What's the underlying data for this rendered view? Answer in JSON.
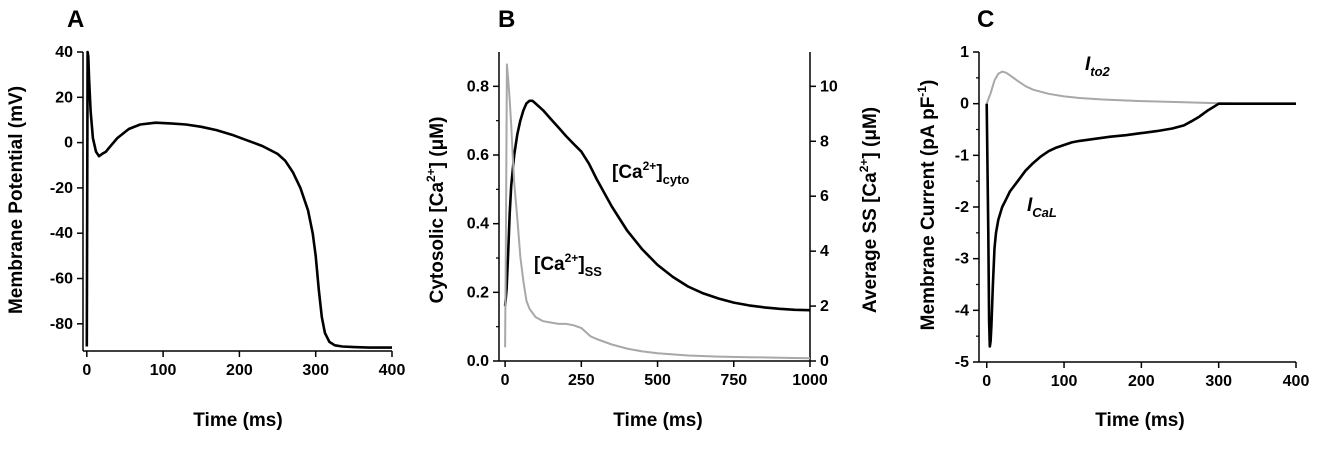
{
  "chart_data": [
    {
      "panel": "A",
      "type": "line",
      "xlabel": "Time (ms)",
      "ylabel": "Membrane Potential (mV)",
      "xlim": [
        -5,
        400
      ],
      "ylim": [
        -92,
        40
      ],
      "xticks": [
        0,
        100,
        200,
        300,
        400
      ],
      "yticks": [
        40,
        20,
        0,
        -20,
        -40,
        -60,
        -80
      ],
      "series": [
        {
          "color": "#000000",
          "x": [
            0,
            1,
            2,
            3,
            5,
            8,
            12,
            16,
            20,
            25,
            30,
            40,
            55,
            70,
            90,
            110,
            130,
            150,
            170,
            190,
            210,
            230,
            250,
            260,
            270,
            280,
            290,
            296,
            300,
            304,
            308,
            312,
            318,
            325,
            335,
            350,
            370,
            400
          ],
          "y": [
            -90,
            40,
            38,
            28,
            14,
            2,
            -4,
            -6,
            -5,
            -4,
            -2,
            2,
            6,
            8,
            8.8,
            8.5,
            8,
            7,
            5.5,
            3.5,
            1,
            -1.5,
            -5,
            -8,
            -13,
            -20,
            -30,
            -40,
            -50,
            -65,
            -77,
            -84,
            -88,
            -89.5,
            -90,
            -90.3,
            -90.5,
            -90.5
          ]
        }
      ]
    },
    {
      "panel": "B",
      "type": "line",
      "xlabel": "Time (ms)",
      "ylabel": "Cytosolic [Ca2+] (μM)",
      "y2label": "Average SS [Ca2+] (μM)",
      "xlim": [
        -20,
        1000
      ],
      "ylim": [
        0,
        0.9
      ],
      "y2lim": [
        0,
        11.25
      ],
      "xticks": [
        0,
        250,
        500,
        750,
        1000
      ],
      "yticks": [
        0.0,
        0.2,
        0.4,
        0.6,
        0.8
      ],
      "y2ticks": [
        0,
        2,
        4,
        6,
        8,
        10
      ],
      "annotations": {
        "cyto": {
          "base": "[Ca",
          "sup": "2+",
          "close": "]",
          "sub": "cyto"
        },
        "ss": {
          "base": "[Ca",
          "sup": "2+",
          "close": "]",
          "sub": "SS"
        }
      },
      "series": [
        {
          "label": "[Ca2+]cyto",
          "axis": "left",
          "color": "#000000",
          "x": [
            0,
            5,
            10,
            15,
            20,
            30,
            40,
            50,
            60,
            70,
            80,
            90,
            100,
            125,
            150,
            175,
            200,
            225,
            250,
            275,
            300,
            350,
            400,
            450,
            500,
            550,
            600,
            650,
            700,
            750,
            800,
            850,
            900,
            950,
            1000
          ],
          "y": [
            0.16,
            0.21,
            0.31,
            0.43,
            0.51,
            0.6,
            0.66,
            0.7,
            0.73,
            0.75,
            0.758,
            0.758,
            0.75,
            0.73,
            0.705,
            0.68,
            0.655,
            0.632,
            0.61,
            0.575,
            0.53,
            0.45,
            0.38,
            0.325,
            0.28,
            0.245,
            0.217,
            0.197,
            0.182,
            0.17,
            0.162,
            0.156,
            0.152,
            0.149,
            0.148
          ]
        },
        {
          "label": "[Ca2+]SS",
          "axis": "right",
          "color": "#a8a8a8",
          "x": [
            0,
            3,
            6,
            10,
            15,
            20,
            25,
            30,
            40,
            50,
            60,
            70,
            80,
            90,
            100,
            125,
            150,
            175,
            200,
            225,
            250,
            260,
            270,
            280,
            300,
            350,
            400,
            450,
            500,
            600,
            700,
            800,
            900,
            1000
          ],
          "y": [
            0.5,
            5,
            10.8,
            10.3,
            9.5,
            8.6,
            7.5,
            6.5,
            5.2,
            3.8,
            2.9,
            2.2,
            1.9,
            1.75,
            1.6,
            1.45,
            1.4,
            1.35,
            1.35,
            1.3,
            1.2,
            1.1,
            1.0,
            0.9,
            0.8,
            0.6,
            0.45,
            0.35,
            0.28,
            0.2,
            0.16,
            0.14,
            0.12,
            0.1
          ]
        }
      ]
    },
    {
      "panel": "C",
      "type": "line",
      "xlabel": "Time (ms)",
      "ylabel_prefix": "Membrane Current (pA pF",
      "ylabel_sup": "-1",
      "ylabel_suffix": ")",
      "xlim": [
        -10,
        400
      ],
      "ylim": [
        -5,
        1
      ],
      "xticks": [
        0,
        100,
        200,
        300,
        400
      ],
      "yticks": [
        1,
        0,
        -1,
        -2,
        -3,
        -4,
        -5
      ],
      "annotations": {
        "ito2": {
          "base": "I",
          "sub": "to2"
        },
        "ical": {
          "base": "I",
          "sub": "CaL"
        }
      },
      "series": [
        {
          "label": "Ito2",
          "color": "#a8a8a8",
          "x": [
            0,
            5,
            10,
            15,
            20,
            25,
            30,
            40,
            50,
            60,
            80,
            100,
            120,
            150,
            200,
            250,
            300,
            350,
            400
          ],
          "y": [
            0,
            0.2,
            0.45,
            0.58,
            0.62,
            0.6,
            0.55,
            0.44,
            0.34,
            0.27,
            0.19,
            0.14,
            0.11,
            0.08,
            0.05,
            0.03,
            0.01,
            0.0,
            0.0
          ]
        },
        {
          "label": "ICaL",
          "color": "#000000",
          "x": [
            0,
            2,
            3,
            4,
            5,
            6,
            8,
            10,
            12,
            15,
            20,
            25,
            30,
            40,
            50,
            60,
            70,
            80,
            90,
            100,
            110,
            120,
            140,
            160,
            180,
            200,
            220,
            240,
            255,
            265,
            275,
            285,
            295,
            300,
            320,
            350,
            400
          ],
          "y": [
            0,
            -2.5,
            -4.2,
            -4.7,
            -4.6,
            -4.3,
            -3.5,
            -2.8,
            -2.5,
            -2.25,
            -2.0,
            -1.85,
            -1.7,
            -1.5,
            -1.3,
            -1.15,
            -1.02,
            -0.92,
            -0.85,
            -0.8,
            -0.75,
            -0.72,
            -0.68,
            -0.64,
            -0.61,
            -0.57,
            -0.53,
            -0.48,
            -0.42,
            -0.34,
            -0.25,
            -0.14,
            -0.05,
            0,
            0,
            0,
            0
          ]
        }
      ]
    }
  ]
}
